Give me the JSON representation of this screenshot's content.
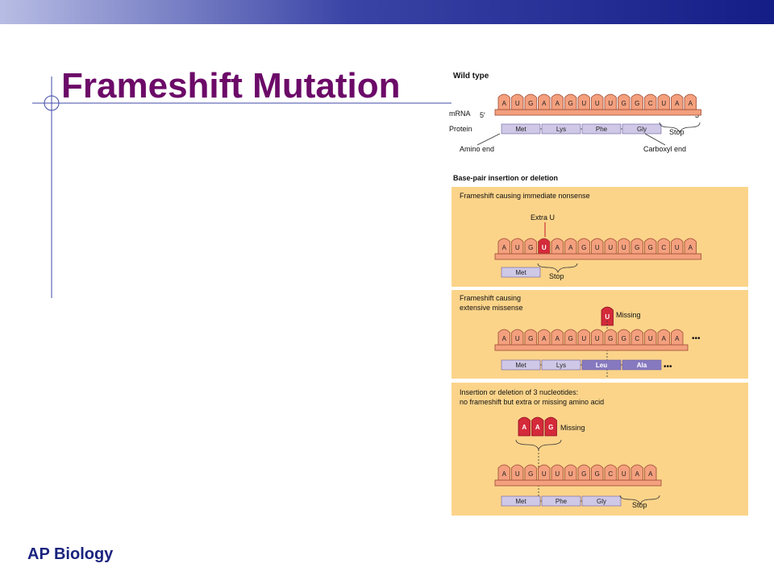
{
  "slide": {
    "title": "Frameshift Mutation",
    "footer": "AP Biology"
  },
  "colors": {
    "topbar": "#141d86",
    "title": "#6c0a68",
    "footer": "#1a237e",
    "panel": "#fbd48a",
    "base": "#f4a07e",
    "inserted": "#d42a3a",
    "protein": "#cfc8e6",
    "protein_dark": "#8779c0"
  },
  "figure": {
    "wild_type": {
      "heading": "Wild type",
      "mrna_label": "mRNA",
      "protein_label": "Protein",
      "five_prime": "5′",
      "three_prime": "3′",
      "bases": [
        "A",
        "U",
        "G",
        "A",
        "A",
        "G",
        "U",
        "U",
        "U",
        "G",
        "G",
        "C",
        "U",
        "A",
        "A"
      ],
      "aminos": [
        "Met",
        "Lys",
        "Phe",
        "Gly"
      ],
      "stop": "Stop",
      "amino_end": "Amino end",
      "carboxyl_end": "Carboxyl end"
    },
    "section_heading": "Base-pair insertion or deletion",
    "panel1": {
      "heading": "Frameshift causing immediate nonsense",
      "note": "Extra U",
      "bases": [
        "A",
        "U",
        "G",
        "U",
        "A",
        "A",
        "G",
        "U",
        "U",
        "U",
        "G",
        "G",
        "C",
        "U",
        "A"
      ],
      "aminos": [
        "Met"
      ],
      "stop": "Stop"
    },
    "panel2": {
      "heading_line1": "Frameshift causing",
      "heading_line2": "extensive missense",
      "missing_base": "U",
      "note": "Missing",
      "bases": [
        "A",
        "U",
        "G",
        "A",
        "A",
        "G",
        "U",
        "U",
        "G",
        "G",
        "C",
        "U",
        "A",
        "A"
      ],
      "aminos": [
        "Met",
        "Lys",
        "Leu",
        "Ala"
      ],
      "ellipsis": "•••"
    },
    "panel3": {
      "heading_line1": "Insertion or deletion of 3 nucleotides:",
      "heading_line2": "no frameshift but extra or missing amino acid",
      "missing_bases": [
        "A",
        "A",
        "G"
      ],
      "note": "Missing",
      "bases": [
        "A",
        "U",
        "G",
        "U",
        "U",
        "U",
        "G",
        "G",
        "C",
        "U",
        "A",
        "A"
      ],
      "aminos": [
        "Met",
        "Phe",
        "Gly"
      ],
      "stop": "Stop"
    }
  }
}
